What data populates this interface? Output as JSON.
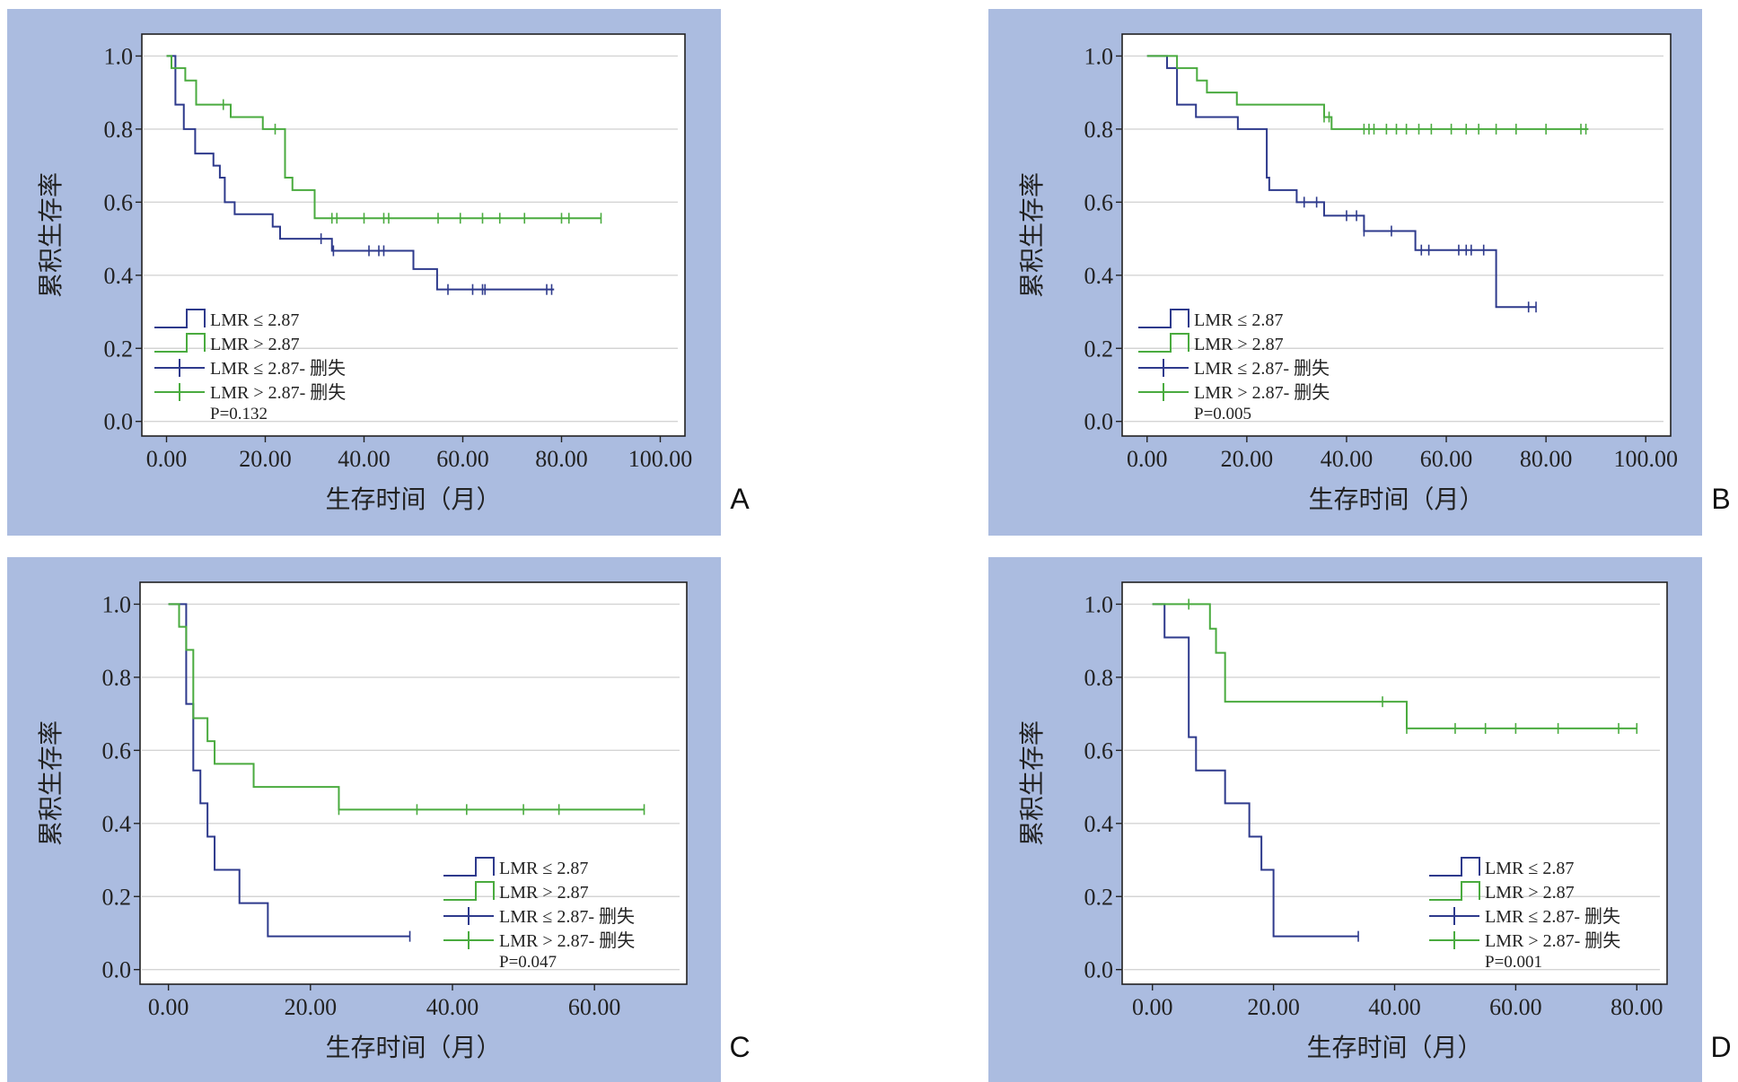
{
  "colors": {
    "panel_bg": "#abbce0",
    "plot_bg": "#ffffff",
    "grid": "#d4d4d4",
    "axis": "#222222",
    "text": "#222222",
    "low_series": "#2e3a8c",
    "high_series": "#4aab3f"
  },
  "common": {
    "ylabel": "累积生存率",
    "xlabel": "生存时间（月）",
    "legend": [
      "LMR ≤ 2.87",
      "LMR > 2.87",
      "LMR ≤ 2.87- 删失",
      "LMR > 2.87- 删失"
    ]
  },
  "chart_data": [
    {
      "panel": "A",
      "type": "line",
      "legend_position": "bottom-left",
      "p_value": "P=0.132",
      "xlim": [
        -5,
        105
      ],
      "ylim": [
        -0.04,
        1.06
      ],
      "xticks": [
        "0.00",
        "20.00",
        "40.00",
        "60.00",
        "80.00",
        "100.00"
      ],
      "xtick_values": [
        0,
        20,
        40,
        60,
        80,
        100
      ],
      "yticks": [
        "0.0",
        "0.2",
        "0.4",
        "0.6",
        "0.8",
        "1.0"
      ],
      "ytick_values": [
        0,
        0.2,
        0.4,
        0.6,
        0.8,
        1.0
      ],
      "series": [
        {
          "name": "LMR ≤ 2.87",
          "color_key": "low_series",
          "steps": [
            [
              0,
              1.0
            ],
            [
              1.8,
              0.867
            ],
            [
              3.5,
              0.8
            ],
            [
              5.8,
              0.733
            ],
            [
              9.5,
              0.7
            ],
            [
              10.8,
              0.667
            ],
            [
              11.8,
              0.6
            ],
            [
              13.8,
              0.567
            ],
            [
              21.5,
              0.533
            ],
            [
              23.0,
              0.5
            ],
            [
              33.5,
              0.467
            ],
            [
              50.0,
              0.417
            ],
            [
              54.8,
              0.361
            ]
          ],
          "end_x": 78.5,
          "censored": [
            31.3,
            33.8,
            41.0,
            43.0,
            44.0,
            57.0,
            62.0,
            64.0,
            64.5,
            77.0,
            78.0
          ]
        },
        {
          "name": "LMR > 2.87",
          "color_key": "high_series",
          "steps": [
            [
              0,
              1.0
            ],
            [
              1.0,
              0.967
            ],
            [
              3.8,
              0.933
            ],
            [
              6.0,
              0.867
            ],
            [
              13.0,
              0.833
            ],
            [
              19.5,
              0.8
            ],
            [
              24.0,
              0.667
            ],
            [
              25.5,
              0.633
            ],
            [
              30.0,
              0.556
            ]
          ],
          "end_x": 88,
          "censored": [
            11.5,
            22.0,
            33.5,
            34.5,
            40.0,
            44.0,
            45.0,
            55.0,
            59.5,
            64.0,
            67.5,
            72.5,
            80.0,
            81.5,
            88.0
          ]
        }
      ]
    },
    {
      "panel": "B",
      "type": "line",
      "legend_position": "bottom-left",
      "p_value": "P=0.005",
      "xlim": [
        -5,
        105
      ],
      "ylim": [
        -0.04,
        1.06
      ],
      "xticks": [
        "0.00",
        "20.00",
        "40.00",
        "60.00",
        "80.00",
        "100.00"
      ],
      "xtick_values": [
        0,
        20,
        40,
        60,
        80,
        100
      ],
      "yticks": [
        "0.0",
        "0.2",
        "0.4",
        "0.6",
        "0.8",
        "1.0"
      ],
      "ytick_values": [
        0,
        0.2,
        0.4,
        0.6,
        0.8,
        1.0
      ],
      "series": [
        {
          "name": "LMR ≤ 2.87",
          "color_key": "low_series",
          "steps": [
            [
              0,
              1.0
            ],
            [
              4.0,
              0.967
            ],
            [
              6.0,
              0.867
            ],
            [
              9.8,
              0.833
            ],
            [
              18.2,
              0.8
            ],
            [
              24.0,
              0.667
            ],
            [
              24.5,
              0.633
            ],
            [
              30.0,
              0.6
            ],
            [
              35.5,
              0.563
            ],
            [
              43.5,
              0.521
            ],
            [
              53.8,
              0.469
            ],
            [
              70.0,
              0.313
            ]
          ],
          "end_x": 78,
          "censored": [
            31.5,
            34.0,
            40.0,
            42.0,
            43.5,
            49.0,
            55.0,
            56.5,
            62.5,
            64.0,
            65.0,
            67.5,
            76.5,
            78.0
          ]
        },
        {
          "name": "LMR > 2.87",
          "color_key": "high_series",
          "steps": [
            [
              0,
              1.0
            ],
            [
              6.0,
              0.967
            ],
            [
              10.0,
              0.933
            ],
            [
              12.0,
              0.9
            ],
            [
              18.0,
              0.867
            ],
            [
              35.5,
              0.833
            ],
            [
              37.0,
              0.8
            ]
          ],
          "end_x": 88.5,
          "censored": [
            35.5,
            36.5,
            43.5,
            44.5,
            45.5,
            48.0,
            50.0,
            52.0,
            54.5,
            57.0,
            61.0,
            64.0,
            66.5,
            70.0,
            74.0,
            80.0,
            87.0,
            88.0
          ]
        }
      ]
    },
    {
      "panel": "C",
      "type": "line",
      "legend_position": "bottom-right",
      "p_value": "P=0.047",
      "xlim": [
        -4,
        73
      ],
      "ylim": [
        -0.04,
        1.06
      ],
      "xticks": [
        "0.00",
        "20.00",
        "40.00",
        "60.00"
      ],
      "xtick_values": [
        0,
        20,
        40,
        60
      ],
      "yticks": [
        "0.0",
        "0.2",
        "0.4",
        "0.6",
        "0.8",
        "1.0"
      ],
      "ytick_values": [
        0,
        0.2,
        0.4,
        0.6,
        0.8,
        1.0
      ],
      "series": [
        {
          "name": "LMR ≤ 2.87",
          "color_key": "low_series",
          "steps": [
            [
              0,
              1.0
            ],
            [
              2.5,
              0.727
            ],
            [
              3.5,
              0.545
            ],
            [
              4.5,
              0.455
            ],
            [
              5.5,
              0.364
            ],
            [
              6.5,
              0.273
            ],
            [
              10.0,
              0.182
            ],
            [
              14.0,
              0.091
            ]
          ],
          "end_x": 34,
          "censored": [
            34.0
          ]
        },
        {
          "name": "LMR > 2.87",
          "color_key": "high_series",
          "steps": [
            [
              0,
              1.0
            ],
            [
              1.5,
              0.938
            ],
            [
              2.5,
              0.875
            ],
            [
              3.5,
              0.688
            ],
            [
              5.5,
              0.625
            ],
            [
              6.5,
              0.563
            ],
            [
              12.0,
              0.5
            ],
            [
              24.0,
              0.438
            ]
          ],
          "end_x": 67,
          "censored": [
            24.0,
            35.0,
            42.0,
            50.0,
            55.0,
            67.0
          ]
        }
      ]
    },
    {
      "panel": "D",
      "type": "line",
      "legend_position": "bottom-right",
      "p_value": "P=0.001",
      "xlim": [
        -5,
        85
      ],
      "ylim": [
        -0.04,
        1.06
      ],
      "xticks": [
        "0.00",
        "20.00",
        "40.00",
        "60.00",
        "80.00"
      ],
      "xtick_values": [
        0,
        20,
        40,
        60,
        80
      ],
      "yticks": [
        "0.0",
        "0.2",
        "0.4",
        "0.6",
        "0.8",
        "1.0"
      ],
      "ytick_values": [
        0,
        0.2,
        0.4,
        0.6,
        0.8,
        1.0
      ],
      "series": [
        {
          "name": "LMR ≤ 2.87",
          "color_key": "low_series",
          "steps": [
            [
              0,
              1.0
            ],
            [
              2.0,
              0.909
            ],
            [
              6.0,
              0.636
            ],
            [
              7.2,
              0.545
            ],
            [
              12.0,
              0.455
            ],
            [
              16.0,
              0.364
            ],
            [
              18.0,
              0.273
            ],
            [
              20.0,
              0.091
            ]
          ],
          "end_x": 34,
          "censored": [
            34.0
          ]
        },
        {
          "name": "LMR > 2.87",
          "color_key": "high_series",
          "steps": [
            [
              0,
              1.0
            ],
            [
              9.5,
              0.933
            ],
            [
              10.5,
              0.867
            ],
            [
              12.0,
              0.733
            ],
            [
              42.0,
              0.66
            ]
          ],
          "end_x": 80,
          "censored": [
            6.0,
            38.0,
            42.0,
            50.0,
            55.0,
            60.0,
            67.0,
            77.0,
            80.0
          ]
        }
      ]
    }
  ]
}
